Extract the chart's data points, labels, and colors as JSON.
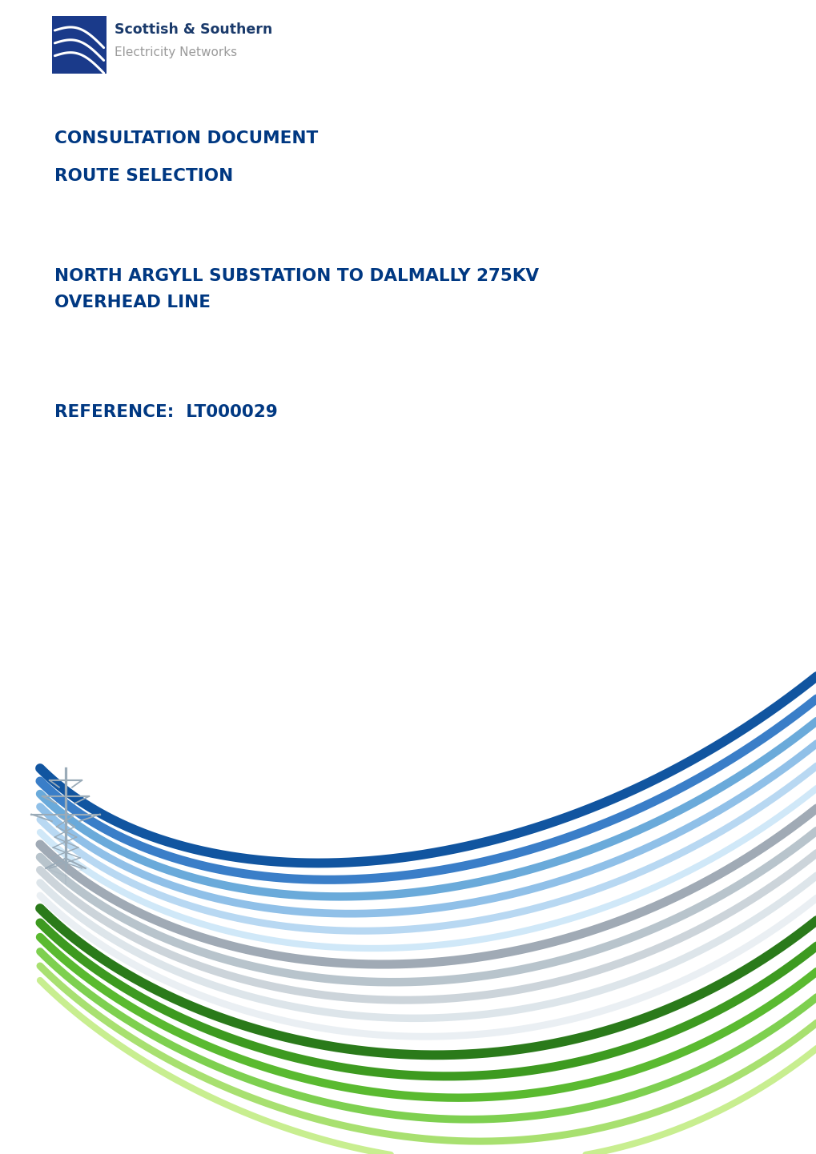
{
  "bg_color": "#ffffff",
  "text_color": "#003882",
  "logo_text_main": "Scottish & Southern",
  "logo_text_sub": "Electricity Networks",
  "logo_text_color": "#1a3a6b",
  "logo_subtext_color": "#9a9a9a",
  "line1": "CONSULTATION DOCUMENT",
  "line2": "ROUTE SELECTION",
  "line3": "NORTH ARGYLL SUBSTATION TO DALMALLY 275KV",
  "line4": "OVERHEAD LINE",
  "line5": "REFERENCE:  LT000029",
  "wave_colors_blue": [
    "#1155a0",
    "#3a7ec8",
    "#6aaada",
    "#90c0e8",
    "#b8d8f2",
    "#d0e8f8"
  ],
  "wave_colors_gray": [
    "#a0aab5",
    "#b8c4cc",
    "#ccd4da",
    "#dde5ea",
    "#eaeff3"
  ],
  "wave_colors_green": [
    "#2a7a1a",
    "#3d9a20",
    "#5aba30",
    "#7ed050",
    "#a8e070",
    "#c8ee90"
  ]
}
